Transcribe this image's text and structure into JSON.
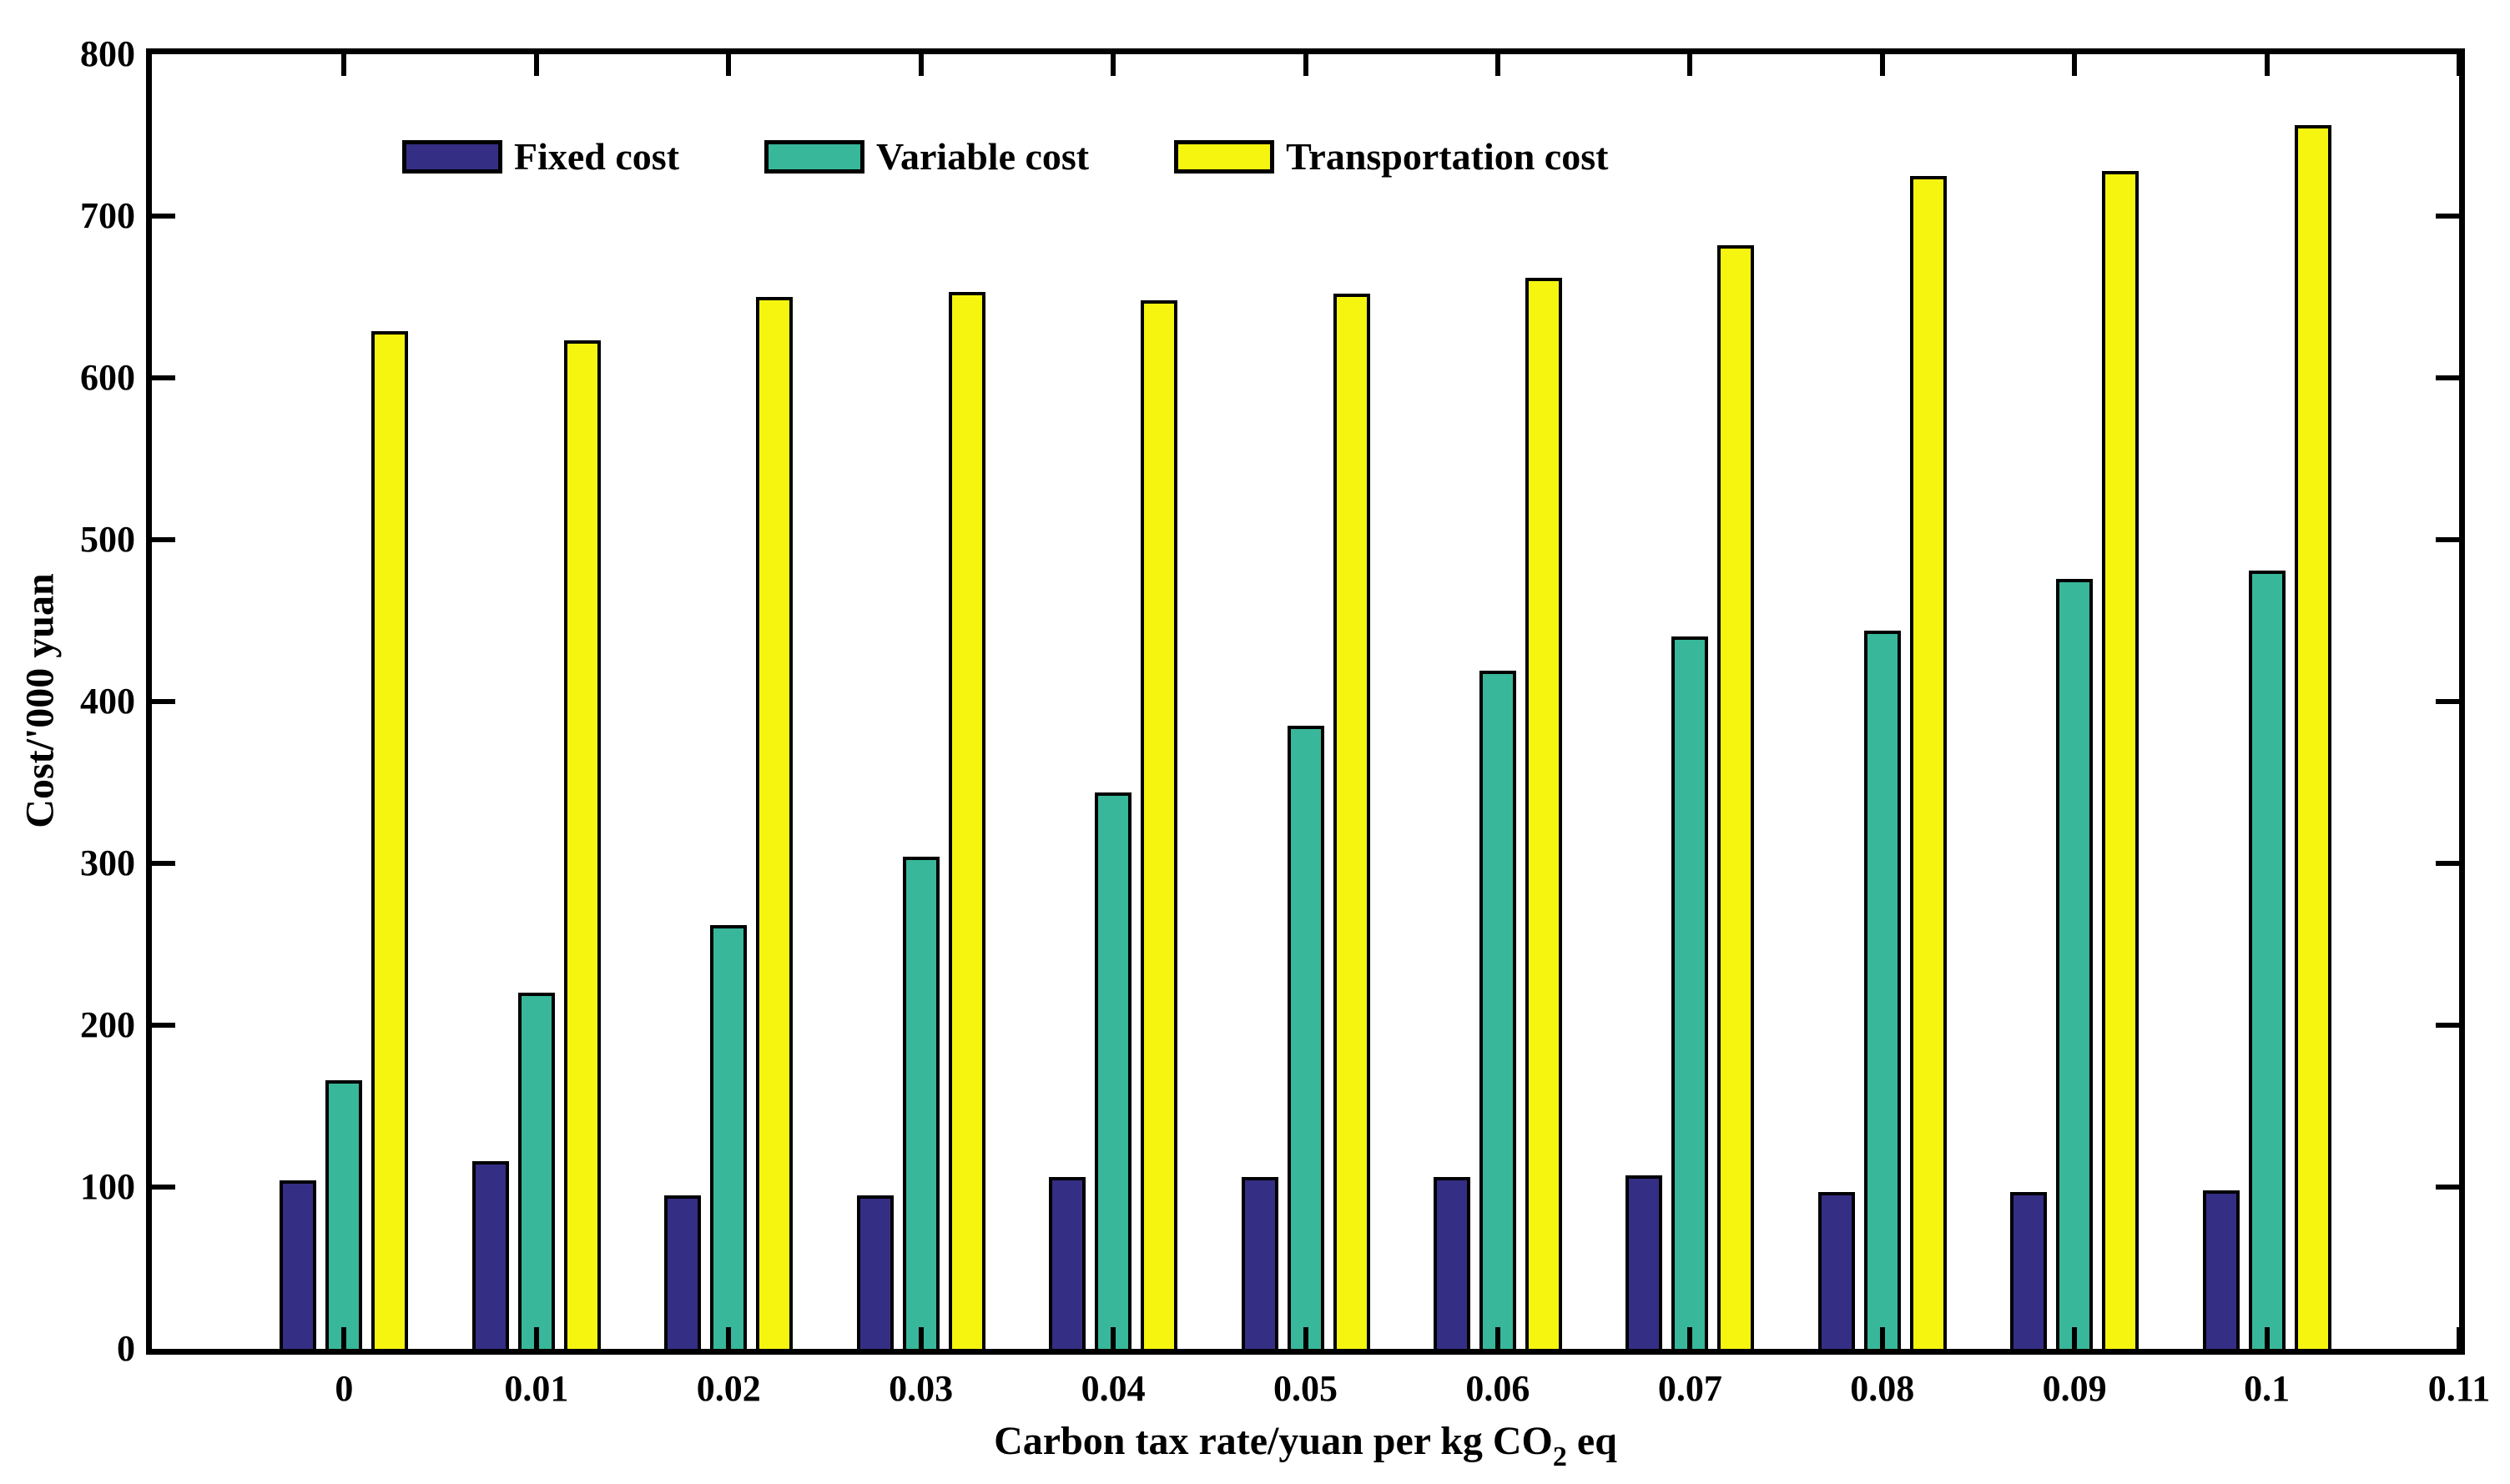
{
  "figure": {
    "background": "#ffffff",
    "axis_color": "#000000"
  },
  "chart_data": {
    "type": "bar",
    "title": "",
    "xlabel": "Carbon tax rate/yuan per kg CO2 eq",
    "xlabel_parts": {
      "pre": "Carbon tax rate/yuan per kg CO",
      "sub": "2",
      "post": " eq"
    },
    "ylabel": "Cost/'000 yuan",
    "categories": [
      "0",
      "0.01",
      "0.02",
      "0.03",
      "0.04",
      "0.05",
      "0.06",
      "0.07",
      "0.08",
      "0.09",
      "0.1"
    ],
    "x_tick_labels": [
      "0",
      "0.01",
      "0.02",
      "0.03",
      "0.04",
      "0.05",
      "0.06",
      "0.07",
      "0.08",
      "0.09",
      "0.1",
      "0.11"
    ],
    "y_tick_labels": [
      "0",
      "100",
      "200",
      "300",
      "400",
      "500",
      "600",
      "700",
      "800"
    ],
    "y_ticks": [
      0,
      100,
      200,
      300,
      400,
      500,
      600,
      700,
      800
    ],
    "ylim": [
      0,
      800
    ],
    "grid": false,
    "box": true,
    "tick_direction": "in",
    "legend_position": "inside-top-left-horizontal",
    "series": [
      {
        "name": "Fixed cost",
        "color": "#352E85",
        "values": [
          104,
          116,
          95,
          95,
          106,
          106,
          106,
          107,
          97,
          97,
          98
        ]
      },
      {
        "name": "Variable cost",
        "color": "#38B79A",
        "values": [
          166,
          220,
          262,
          304,
          344,
          385,
          419,
          440,
          444,
          476,
          481
        ]
      },
      {
        "name": "Transportation cost",
        "color": "#F5F510",
        "values": [
          629,
          623,
          650,
          653,
          648,
          652,
          662,
          682,
          725,
          728,
          756
        ]
      }
    ]
  }
}
